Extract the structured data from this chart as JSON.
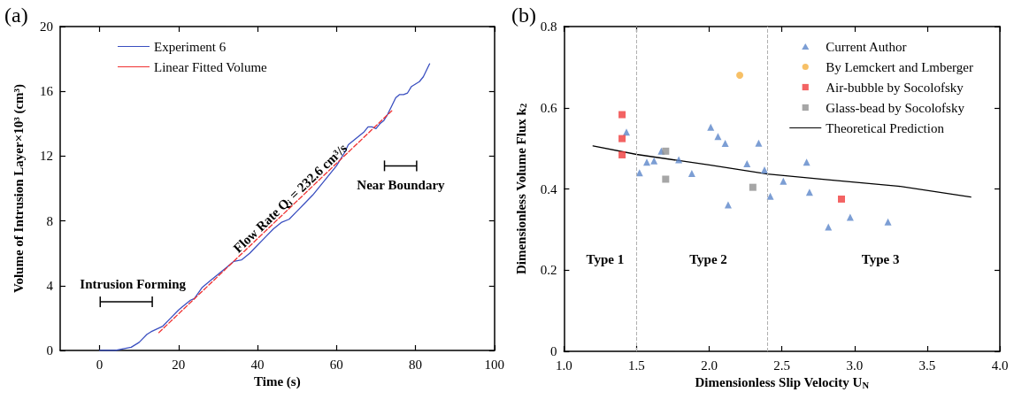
{
  "chart_data": [
    {
      "type": "line",
      "title": "(a)",
      "xlabel": "Time (s)",
      "ylabel": "Volume of Intrusion Layer×10³ (cm³)",
      "xlim": [
        -10,
        100
      ],
      "xticks": [
        0,
        20,
        40,
        60,
        80,
        100
      ],
      "ylim": [
        0,
        20
      ],
      "yticks": [
        0,
        4,
        8,
        12,
        16,
        20
      ],
      "legend": "top left",
      "series": [
        {
          "name": "Experiment 6",
          "color": "#3a4fc0",
          "line_style": "solid",
          "marker": "none",
          "x": [
            0,
            4,
            6,
            8,
            10,
            12,
            13,
            16,
            18,
            20,
            21,
            23,
            24,
            26,
            28,
            30,
            32,
            34,
            36,
            38,
            40,
            42,
            44,
            46,
            48,
            50,
            52,
            54,
            56,
            58,
            60,
            62,
            63,
            65,
            67,
            68,
            69,
            70,
            71,
            72,
            73,
            74,
            75,
            76,
            77,
            78,
            79,
            81,
            82,
            83,
            83.6
          ],
          "values": [
            0,
            0,
            0.1,
            0.2,
            0.5,
            1.0,
            1.15,
            1.5,
            2.0,
            2.5,
            2.7,
            3.1,
            3.2,
            3.9,
            4.3,
            4.7,
            5.1,
            5.5,
            5.6,
            6.0,
            6.5,
            7.0,
            7.5,
            7.9,
            8.1,
            8.6,
            9.1,
            9.6,
            10.2,
            10.8,
            11.4,
            12.2,
            12.7,
            13.1,
            13.5,
            13.8,
            13.8,
            13.7,
            14.0,
            14.2,
            14.6,
            15.1,
            15.6,
            15.8,
            15.8,
            15.9,
            16.3,
            16.6,
            16.9,
            17.4,
            17.7
          ]
        },
        {
          "name": "Linear Fitted Volume",
          "color": "#f03030",
          "line_style": "dashed",
          "marker": "none",
          "x": [
            15,
            74
          ],
          "values": [
            1.1,
            14.8
          ]
        }
      ],
      "annotations": [
        "Intrusion Forming",
        "Flow Rate Q$_{i}$ = 232.6 cm³/s",
        "Near Boundary"
      ]
    },
    {
      "type": "scatter",
      "title": "(b)",
      "xlabel": "Dimensionless Slip Velocity U$_{N}$",
      "ylabel": "Dimensionless Volume Flux k$_{2}$",
      "xlim": [
        1.0,
        4.0
      ],
      "xticks": [
        {
          "value": 1,
          "label": "1.0"
        },
        1.5,
        {
          "value": 2,
          "label": "2.0"
        },
        2.5,
        {
          "value": 3,
          "label": "3.0"
        },
        3.5,
        {
          "value": 4,
          "label": "4.0"
        }
      ],
      "ylim": [
        0,
        0.8
      ],
      "yticks": [
        0,
        0.2,
        0.4,
        0.6,
        0.8
      ],
      "legend": "top right",
      "series": [
        {
          "name": "Current Author",
          "color": "#5b86c9",
          "marker": "triangle",
          "x": [
            1.43,
            1.52,
            1.57,
            1.62,
            1.67,
            1.79,
            1.88,
            2.01,
            2.06,
            2.11,
            2.13,
            2.26,
            2.34,
            2.38,
            2.42,
            2.51,
            2.67,
            2.69,
            2.82,
            2.97,
            3.23
          ],
          "values": [
            0.54,
            0.44,
            0.466,
            0.469,
            0.493,
            0.472,
            0.438,
            0.552,
            0.529,
            0.512,
            0.361,
            0.462,
            0.513,
            0.447,
            0.382,
            0.419,
            0.466,
            0.392,
            0.306,
            0.33,
            0.319
          ]
        },
        {
          "name": "By Lemckert and Lmberger",
          "color": "#f5b040",
          "marker": "circle",
          "x": [
            2.21
          ],
          "values": [
            0.68
          ]
        },
        {
          "name": "Air-bubble by Socolofsky",
          "color": "#f03c3c",
          "marker": "square",
          "x": [
            1.4,
            1.4,
            1.4,
            2.91
          ],
          "values": [
            0.583,
            0.524,
            0.484,
            0.375
          ]
        },
        {
          "name": "Glass-bead by Socolofsky",
          "color": "#909090",
          "marker": "square",
          "x": [
            1.7,
            1.7,
            2.3
          ],
          "values": [
            0.493,
            0.424,
            0.404
          ]
        },
        {
          "name": "Theoretical Prediction",
          "type": "line",
          "color": "#000000",
          "marker": "none",
          "line_style": "solid",
          "x": [
            1.2,
            1.5,
            2.0,
            2.4,
            2.8,
            3.3,
            3.8
          ],
          "values": [
            0.506,
            0.485,
            0.459,
            0.437,
            0.423,
            0.407,
            0.38
          ]
        }
      ],
      "ref_lines": [
        {
          "axis": "x",
          "value": 1.5,
          "label": null,
          "color": "#b0b0b0",
          "line_style": "dashed"
        },
        {
          "axis": "x",
          "value": 2.4,
          "label": null,
          "color": "#b0b0b0",
          "line_style": "dashed"
        }
      ],
      "annotations": [
        "Type 1",
        "Type 2",
        "Type 3"
      ]
    }
  ]
}
